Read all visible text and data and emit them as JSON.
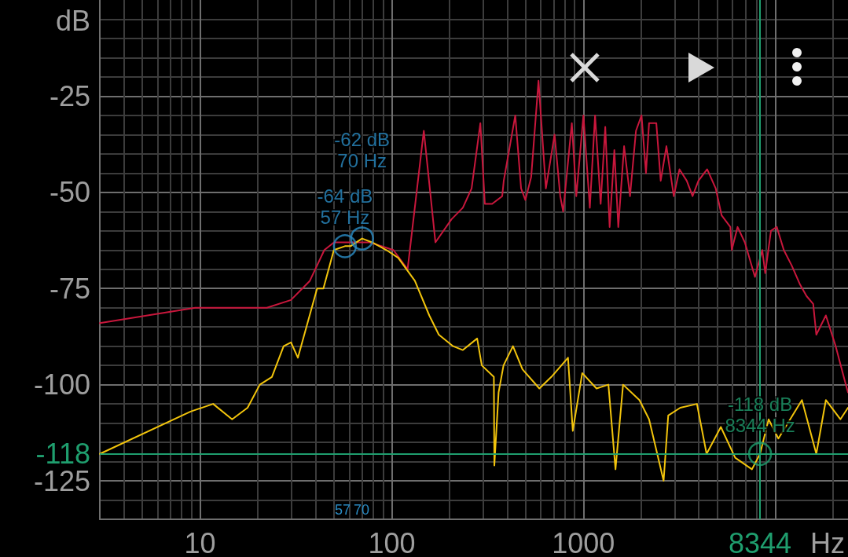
{
  "chart_data": {
    "type": "line",
    "xlabel": "Hz",
    "ylabel": "dB",
    "log": "x",
    "grid": true,
    "xlim": [
      3,
      24000
    ],
    "xticks": [
      {
        "value": 4,
        "label": null
      },
      {
        "value": 5,
        "label": null
      },
      {
        "value": 6,
        "label": null
      },
      {
        "value": 7,
        "label": null
      },
      {
        "value": 8,
        "label": null
      },
      {
        "value": 9,
        "label": null
      },
      10,
      {
        "value": 20,
        "label": null
      },
      {
        "value": 30,
        "label": null
      },
      {
        "value": 40,
        "label": null
      },
      {
        "value": 50,
        "label": null
      },
      {
        "value": 60,
        "label": null
      },
      {
        "value": 70,
        "label": null
      },
      {
        "value": 80,
        "label": null
      },
      {
        "value": 90,
        "label": null
      },
      100,
      {
        "value": 200,
        "label": null
      },
      {
        "value": 300,
        "label": null
      },
      {
        "value": 400,
        "label": null
      },
      {
        "value": 500,
        "label": null
      },
      {
        "value": 600,
        "label": null
      },
      {
        "value": 700,
        "label": null
      },
      {
        "value": 800,
        "label": null
      },
      {
        "value": 900,
        "label": null
      },
      1000,
      {
        "value": 2000,
        "label": null
      },
      {
        "value": 3000,
        "label": null
      },
      {
        "value": 4000,
        "label": null
      },
      {
        "value": 5000,
        "label": null
      },
      {
        "value": 6000,
        "label": null
      },
      {
        "value": 7000,
        "label": null
      },
      {
        "value": 8000,
        "label": null
      },
      {
        "value": 9000,
        "label": null
      },
      {
        "value": 10000,
        "label": null
      },
      {
        "value": 20000,
        "label": null
      }
    ],
    "ylim": [
      -135,
      0
    ],
    "yticks": [
      {
        "value": -130,
        "label": null
      },
      -125,
      {
        "value": -120,
        "label": null
      },
      {
        "value": -115,
        "label": null
      },
      {
        "value": -110,
        "label": null
      },
      {
        "value": -105,
        "label": null
      },
      -100,
      {
        "value": -95,
        "label": null
      },
      {
        "value": -90,
        "label": null
      },
      {
        "value": -85,
        "label": null
      },
      {
        "value": -80,
        "label": null
      },
      -75,
      {
        "value": -70,
        "label": null
      },
      {
        "value": -65,
        "label": null
      },
      {
        "value": -60,
        "label": null
      },
      {
        "value": -55,
        "label": null
      },
      -50,
      {
        "value": -45,
        "label": null
      },
      {
        "value": -40,
        "label": null
      },
      {
        "value": -35,
        "label": null
      },
      {
        "value": -30,
        "label": null
      },
      -25,
      {
        "value": -20,
        "label": null
      },
      {
        "value": -15,
        "label": null
      },
      {
        "value": -10,
        "label": null
      },
      {
        "value": -5,
        "label": null
      }
    ],
    "series": [
      {
        "color": "#c8173c",
        "marker": "none",
        "x": [
          3,
          5.32,
          9.44,
          16.7,
          22.3,
          29.8,
          37.4,
          44.5,
          50,
          60,
          76.7,
          102,
          121,
          147,
          169,
          205,
          235,
          261,
          290,
          306,
          334,
          377,
          384,
          441,
          473,
          498,
          534,
          583,
          637,
          707,
          757,
          784,
          870,
          918,
          1000,
          1080,
          1150,
          1230,
          1300,
          1370,
          1450,
          1520,
          1630,
          1750,
          1880,
          2010,
          2120,
          2200,
          2400,
          2530,
          2710,
          2960,
          3170,
          3460,
          3710,
          3980,
          4420,
          4900,
          5260,
          5840,
          5940,
          6370,
          6950,
          7850,
          8570,
          8880,
          9510,
          10200,
          11100,
          12200,
          13500,
          14600,
          15800,
          16400,
          18400,
          20700,
          23100,
          24000
        ],
        "values": [
          -84,
          -82,
          -80,
          -80,
          -80,
          -78,
          -73,
          -65,
          -63,
          -63,
          -63,
          -65,
          -70,
          -34,
          -63,
          -57,
          -54,
          -49,
          -32,
          -53,
          -53,
          -51,
          -47,
          -30,
          -49,
          -52,
          -46,
          -21,
          -49,
          -35,
          -51,
          -55,
          -32,
          -51,
          -30,
          -54,
          -30,
          -53,
          -33,
          -59,
          -39,
          -59,
          -38,
          -51,
          -34,
          -30,
          -45,
          -32,
          -32,
          -47,
          -38,
          -51,
          -44,
          -47,
          -51,
          -47,
          -44,
          -49,
          -56,
          -59,
          -65,
          -59,
          -63,
          -72,
          -65,
          -71,
          -60,
          -59,
          -65,
          -69,
          -74,
          -77,
          -79,
          -87,
          -82,
          -90,
          -99,
          -102
        ]
      },
      {
        "color": "#f2c40c",
        "marker": "none",
        "x": [
          3,
          8.92,
          11.7,
          14.7,
          17.7,
          20.5,
          23.7,
          27.3,
          29.8,
          32.4,
          40.8,
          44,
          49.9,
          57,
          61,
          70,
          79,
          93.8,
          108,
          132,
          157,
          176,
          209,
          235,
          279,
          295,
          341,
          343,
          361,
          383,
          429,
          481,
          589,
          680,
          831,
          880,
          986,
          1170,
          1350,
          1470,
          1610,
          1960,
          2200,
          2620,
          2770,
          3200,
          3910,
          4390,
          5210,
          6190,
          7570,
          8344,
          9250,
          10400,
          13800,
          16400,
          18400,
          21900,
          24000
        ],
        "values": [
          -118,
          -107,
          -105,
          -109,
          -106,
          -100,
          -98,
          -90,
          -89,
          -93,
          -75,
          -75,
          -65,
          -64,
          -64,
          -62,
          -63,
          -65,
          -67,
          -73,
          -82,
          -87,
          -90,
          -91,
          -88,
          -95,
          -98,
          -121,
          -102,
          -95,
          -90,
          -96,
          -101,
          -98,
          -93,
          -112,
          -97,
          -101,
          -100,
          -122,
          -100,
          -104,
          -109,
          -125,
          -108,
          -106,
          -105,
          -118,
          -111,
          -119,
          -122,
          -118,
          -109,
          -114,
          -104,
          -118,
          -104,
          -109,
          -106
        ]
      },
      {
        "type": "scatter",
        "color": "#2a8cc4",
        "marker": "circle",
        "x": [
          57,
          70
        ],
        "values": [
          -64,
          -62
        ],
        "value_labels": [
          "-64 dB\n57 Hz",
          "-62 dB\n70 Hz"
        ]
      },
      {
        "type": "scatter",
        "color": "#1f9e6e",
        "marker": "circle",
        "x": [
          8344
        ],
        "values": [
          -118
        ],
        "value_labels": [
          "-118 dB\n8344 Hz"
        ]
      }
    ],
    "ref_lines": [
      {
        "axis": "x",
        "value": 8344,
        "label": "8344",
        "color": "#1f9e6e"
      },
      {
        "axis": "y",
        "value": -118,
        "label": "-118",
        "color": "#1f9e6e"
      }
    ],
    "annotations": [
      "57",
      "70"
    ]
  }
}
